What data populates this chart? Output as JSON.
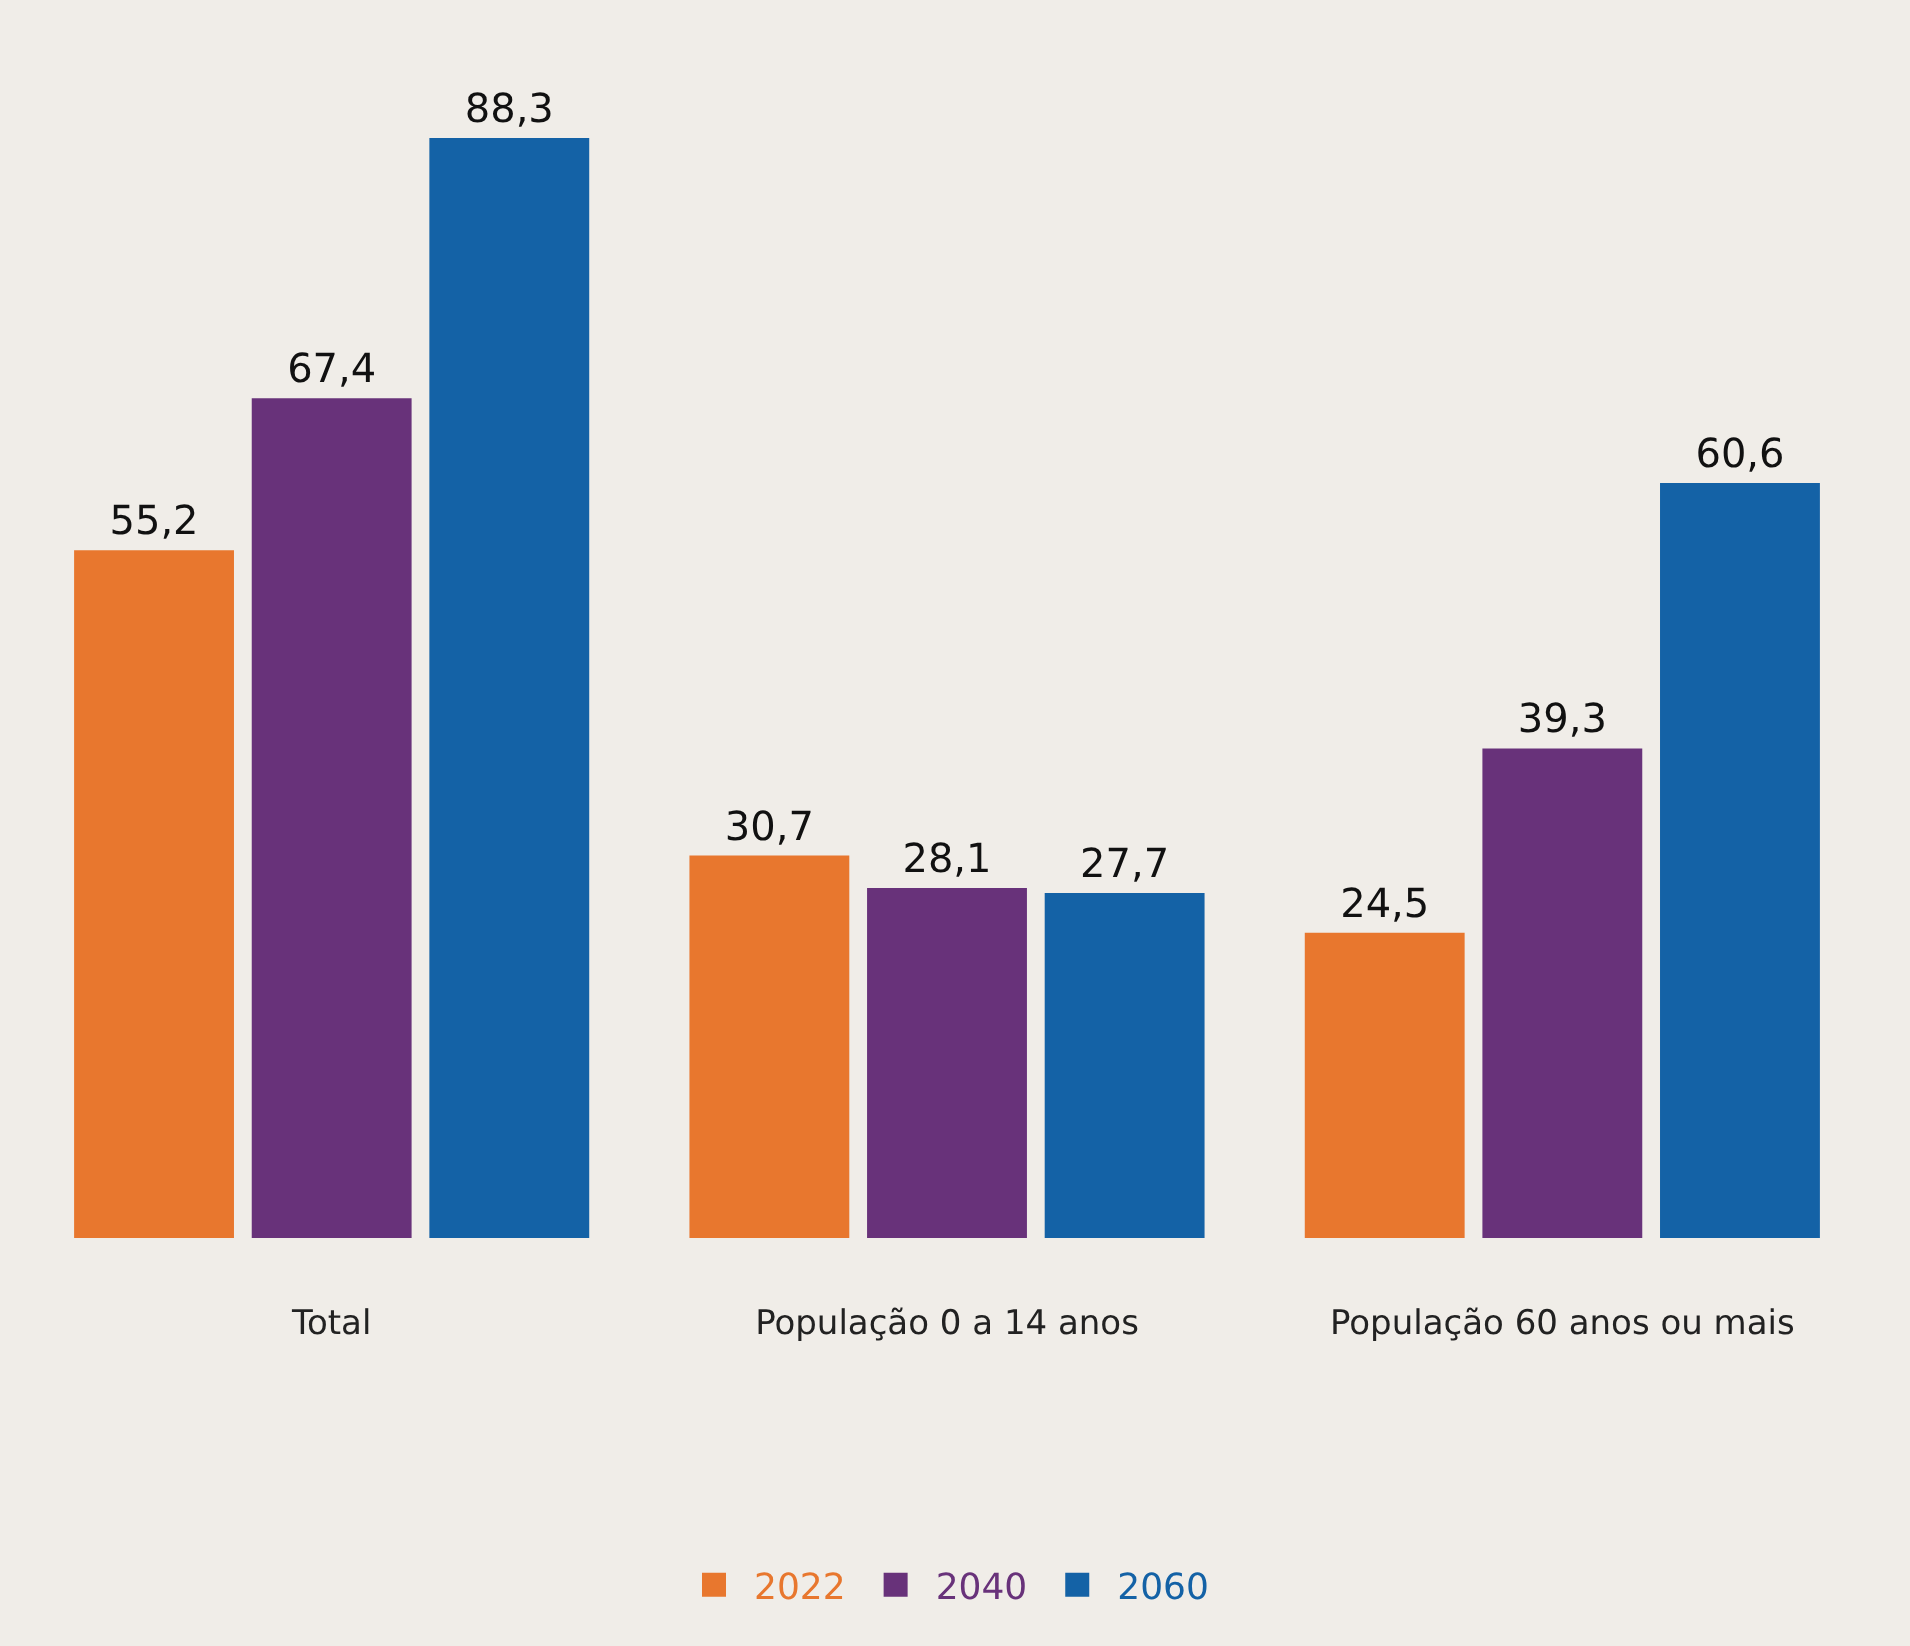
{
  "chart_data": {
    "type": "bar",
    "categories": [
      "Total",
      "População 0 a 14 anos",
      "População 60 anos ou mais"
    ],
    "series": [
      {
        "name": "2022",
        "color": "#e8772e",
        "values": [
          55.2,
          30.7,
          24.5
        ],
        "value_labels": [
          "55,2",
          "30,7",
          "24,5"
        ]
      },
      {
        "name": "2040",
        "color": "#68327a",
        "values": [
          67.4,
          28.1,
          39.3
        ],
        "value_labels": [
          "67,4",
          "28,1",
          "39,3"
        ]
      },
      {
        "name": "2060",
        "color": "#1462a6",
        "values": [
          88.3,
          27.7,
          60.6
        ],
        "value_labels": [
          "88,3",
          "27,7",
          "60,6"
        ]
      }
    ],
    "legend": "bottom",
    "grid": false
  }
}
